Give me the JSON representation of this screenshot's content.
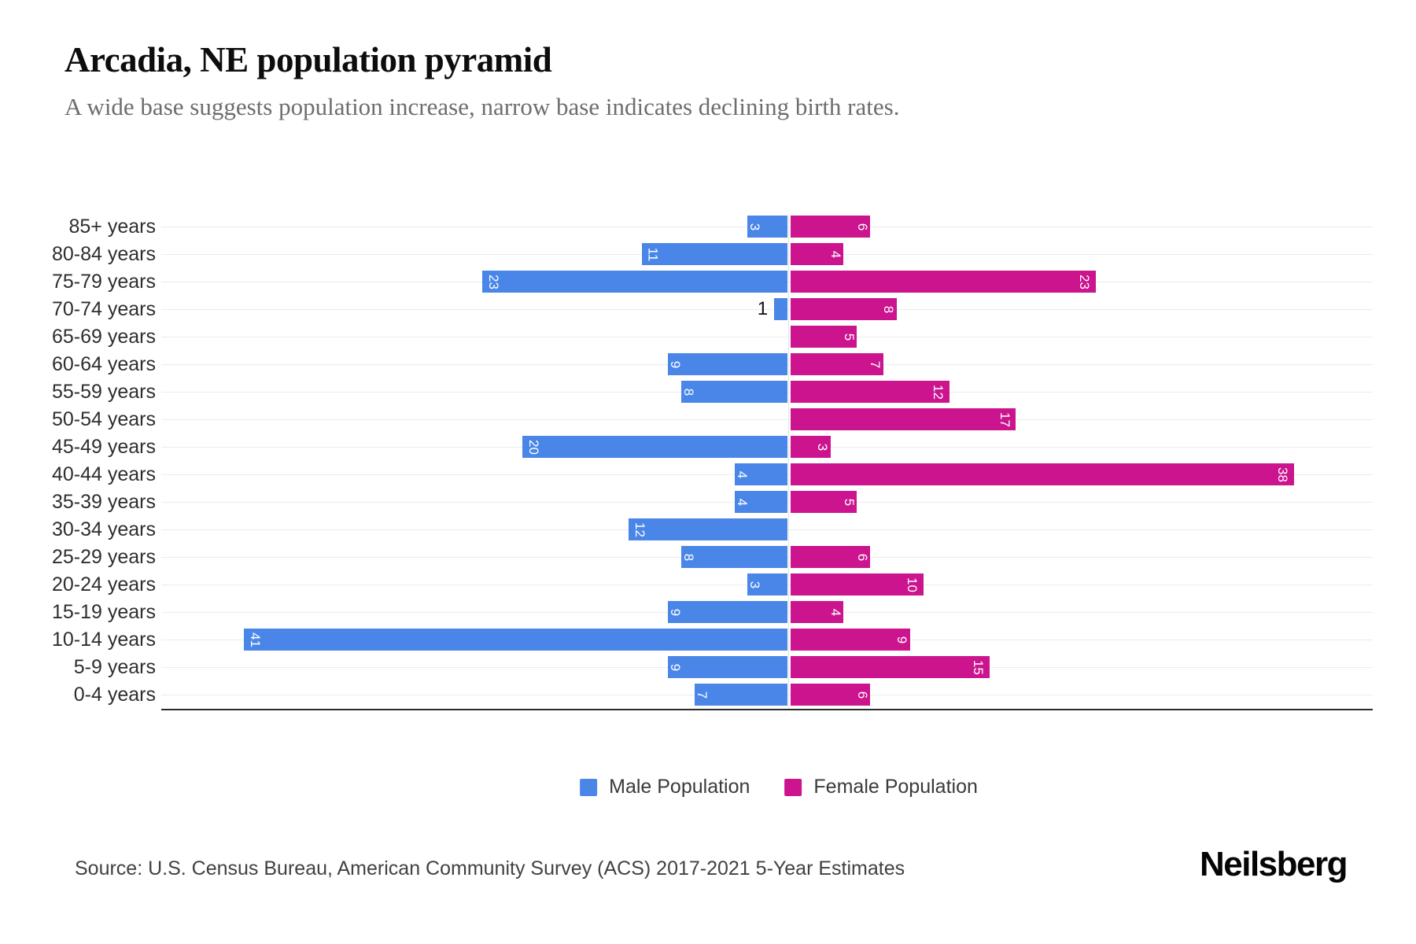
{
  "header": {
    "title": "Arcadia, NE population pyramid",
    "subtitle": "A wide base suggests population increase, narrow base indicates declining birth rates."
  },
  "chart_data": {
    "type": "bar",
    "orientation": "horizontal population pyramid, male bars extend left and female bars extend right from a shared center axis",
    "categories": [
      "85+ years",
      "80-84 years",
      "75-79 years",
      "70-74 years",
      "65-69 years",
      "60-64 years",
      "55-59 years",
      "50-54 years",
      "45-49 years",
      "40-44 years",
      "35-39 years",
      "30-34 years",
      "25-29 years",
      "20-24 years",
      "15-19 years",
      "10-14 years",
      "5-9 years",
      "0-4 years"
    ],
    "series": [
      {
        "name": "Male Population",
        "color": "#4a86e8",
        "values": [
          3,
          11,
          23,
          1,
          0,
          9,
          8,
          0,
          20,
          4,
          4,
          12,
          8,
          3,
          9,
          41,
          9,
          7
        ]
      },
      {
        "name": "Female Population",
        "color": "#cb148e",
        "values": [
          6,
          4,
          23,
          8,
          5,
          7,
          12,
          17,
          3,
          38,
          5,
          0,
          6,
          10,
          4,
          9,
          15,
          6
        ]
      }
    ],
    "value_labels": "shown inside bar at outer end, white, rotated 90deg; values too small for the bar (male 1 in 70-74 years) are shown outside the bar in black",
    "xlim_each_side": [
      0,
      45
    ],
    "grid": true,
    "legend_position": "bottom center"
  },
  "legend": {
    "items": [
      {
        "label": "Male Population",
        "color": "#4a86e8"
      },
      {
        "label": "Female Population",
        "color": "#cb148e"
      }
    ]
  },
  "footer": {
    "source": "Source: U.S. Census Bureau, American Community Survey (ACS) 2017-2021 5-Year Estimates",
    "brand": "Neilsberg"
  }
}
